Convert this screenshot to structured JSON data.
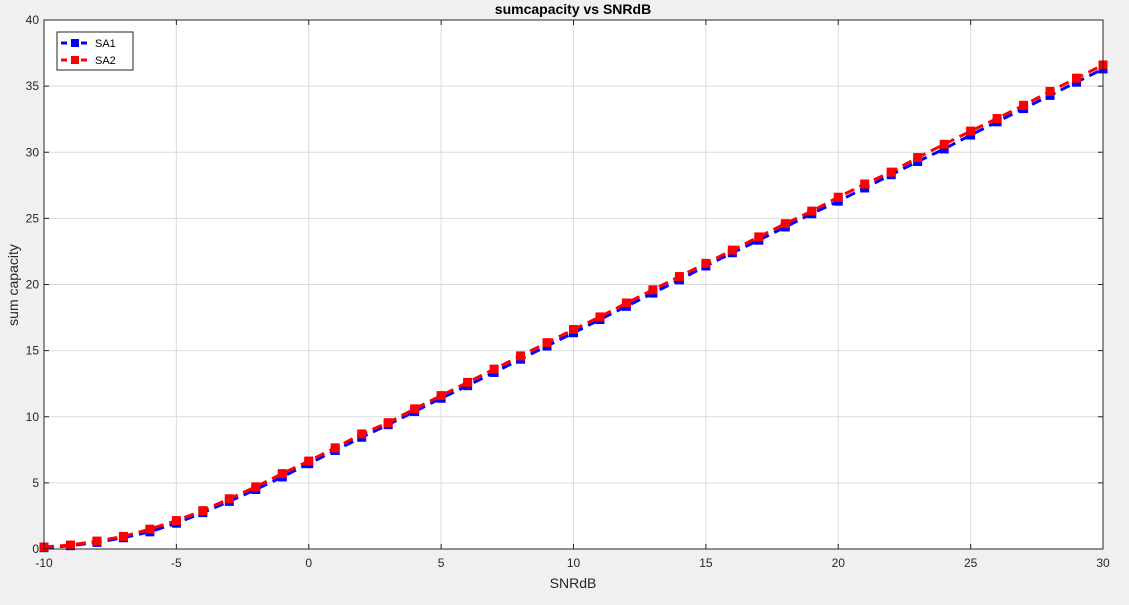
{
  "chart_data": {
    "type": "line",
    "title": "sumcapacity vs SNRdB",
    "xlabel": "SNRdB",
    "ylabel": "sum capacity",
    "xlim": [
      -10,
      30
    ],
    "ylim": [
      0,
      40
    ],
    "xticks": [
      -10,
      -5,
      0,
      5,
      10,
      15,
      20,
      25,
      30
    ],
    "yticks": [
      0,
      5,
      10,
      15,
      20,
      25,
      30,
      35,
      40
    ],
    "grid": true,
    "legend_position": "top-left",
    "x": [
      -10,
      -9,
      -8,
      -7,
      -6,
      -5,
      -4,
      -3,
      -2,
      -1,
      0,
      1,
      2,
      3,
      4,
      5,
      6,
      7,
      8,
      9,
      10,
      11,
      12,
      13,
      14,
      15,
      16,
      17,
      18,
      19,
      20,
      21,
      22,
      23,
      24,
      25,
      26,
      27,
      28,
      29,
      30
    ],
    "series": [
      {
        "name": "SA1",
        "color": "#0000ff",
        "marker": "square",
        "line_style": "dashed",
        "values": [
          0.1,
          0.25,
          0.5,
          0.85,
          1.3,
          1.95,
          2.75,
          3.6,
          4.5,
          5.45,
          6.45,
          7.45,
          8.45,
          9.4,
          10.4,
          11.4,
          12.35,
          13.35,
          14.35,
          15.35,
          16.35,
          17.35,
          18.35,
          19.35,
          20.35,
          21.4,
          22.4,
          23.35,
          24.35,
          25.35,
          26.3,
          27.3,
          28.3,
          29.3,
          30.25,
          31.3,
          32.3,
          33.3,
          34.3,
          35.3,
          36.3
        ]
      },
      {
        "name": "SA2",
        "color": "#ff0000",
        "marker": "square",
        "line_style": "dashed",
        "values": [
          0.15,
          0.3,
          0.6,
          0.95,
          1.5,
          2.15,
          2.9,
          3.8,
          4.7,
          5.7,
          6.65,
          7.65,
          8.7,
          9.55,
          10.6,
          11.6,
          12.6,
          13.6,
          14.6,
          15.6,
          16.6,
          17.55,
          18.6,
          19.6,
          20.6,
          21.6,
          22.6,
          23.6,
          24.6,
          25.55,
          26.6,
          27.6,
          28.5,
          29.6,
          30.6,
          31.6,
          32.55,
          33.55,
          34.6,
          35.6,
          36.6
        ]
      }
    ]
  }
}
